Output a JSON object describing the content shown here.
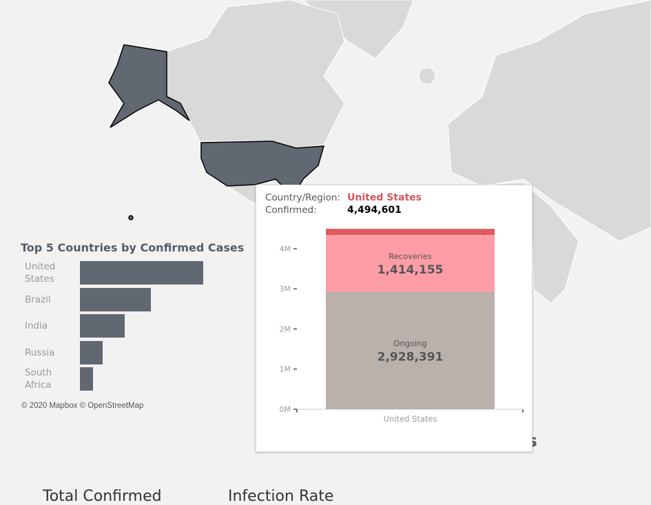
{
  "chart_data": [
    {
      "type": "hbar",
      "title": "Top 5 Countries by Confirmed Cases",
      "categories": [
        "United States",
        "Brazil",
        "India",
        "Russia",
        "South Africa"
      ],
      "values": [
        4494601,
        2590000,
        1630000,
        830000,
        480000
      ],
      "color": "#626872"
    },
    {
      "type": "stacked-bar",
      "tooltip_label": "Country/Region:",
      "country": "United States",
      "confirmed_label_text": "Confirmed:",
      "confirmed": 4494601,
      "confirmed_label": "4,494,601",
      "categories": [
        "United States"
      ],
      "series": [
        {
          "name": "Ongoing",
          "color": "#bab0ac",
          "values": [
            2928391
          ],
          "value_labels": [
            "2,928,391"
          ]
        },
        {
          "name": "Recoveries",
          "color": "#ff9da7",
          "values": [
            1414155
          ],
          "value_labels": [
            "1,414,155"
          ]
        },
        {
          "color": "#dd5a5f",
          "values": [
            152055
          ]
        }
      ],
      "ylim": [
        0,
        4600000
      ],
      "yticks": [
        {
          "value": 0,
          "label": "0M"
        },
        {
          "value": 1000000,
          "label": "1M"
        },
        {
          "value": 2000000,
          "label": "2M"
        },
        {
          "value": 3000000,
          "label": "3M"
        },
        {
          "value": 4000000,
          "label": "4M"
        }
      ]
    }
  ],
  "map": {
    "attribution": [
      "© 2020 Mapbox",
      "© OpenStreetMap"
    ]
  },
  "dashboard": {
    "partial_heading": "es",
    "headings": [
      "Total Confirmed",
      "Infection Rate"
    ]
  }
}
